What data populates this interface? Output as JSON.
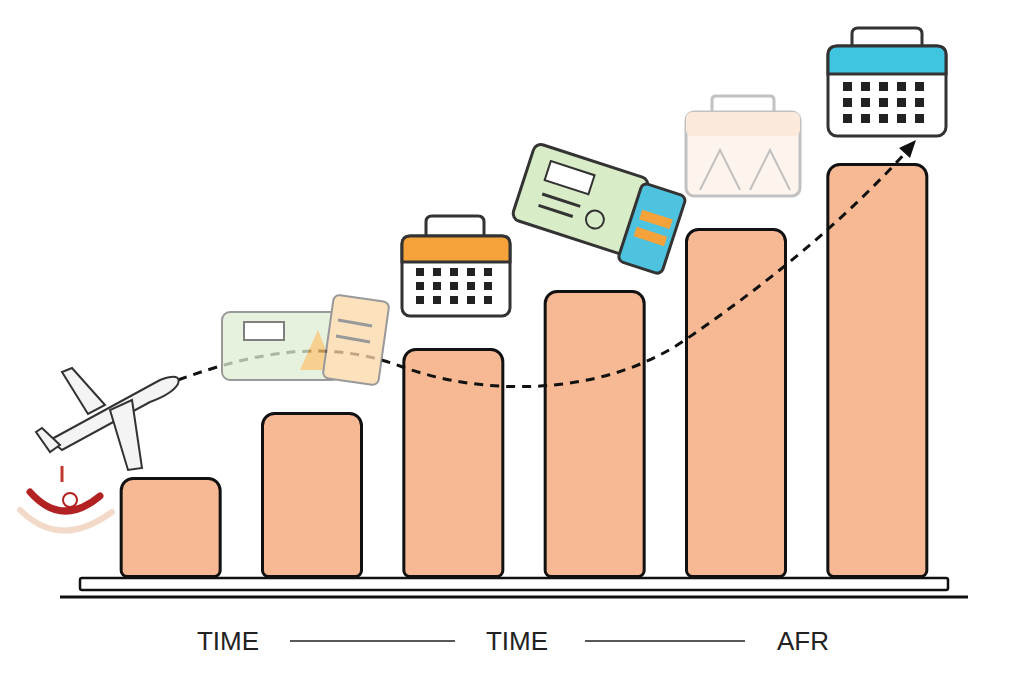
{
  "chart_data": {
    "type": "bar",
    "categories": [
      null,
      null,
      null,
      null,
      null,
      null
    ],
    "values": [
      101,
      166,
      230,
      288,
      350,
      415
    ],
    "color": "#f6b993",
    "ylim": [
      0,
      560
    ],
    "grid": false,
    "tick_labels": false,
    "annotations": [
      "TIME",
      "TIME",
      "AFR"
    ]
  }
}
